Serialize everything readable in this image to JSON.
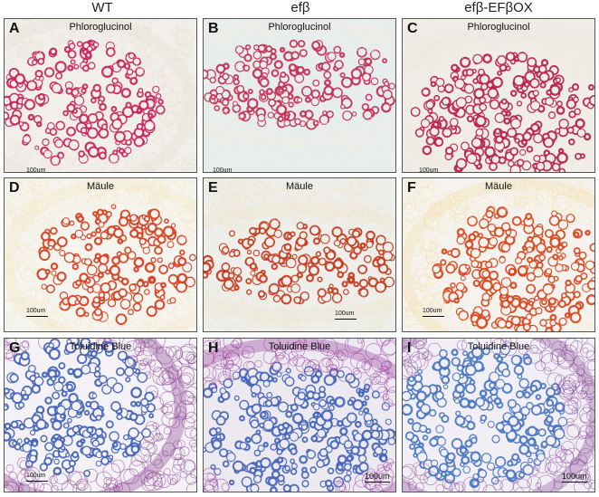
{
  "columns": [
    "WT",
    "efβ",
    "efβ-EFβOX"
  ],
  "rows": [
    {
      "stain": "Phloroglucinol",
      "panels": [
        {
          "letter": "A",
          "scale": "100um",
          "palette": [
            "#e8e3d6",
            "#c82058",
            "#f2eeea"
          ]
        },
        {
          "letter": "B",
          "scale": "100um",
          "palette": [
            "#f1eee8",
            "#c42a52",
            "#e7ecec"
          ]
        },
        {
          "letter": "C",
          "scale": "100um",
          "palette": [
            "#ebe7df",
            "#b81c4a",
            "#f0ede6"
          ]
        }
      ]
    },
    {
      "stain": "Mäule",
      "panels": [
        {
          "letter": "D",
          "scale": "100um",
          "palette": [
            "#f3e8c4",
            "#d63b1c",
            "#f6f4ee"
          ]
        },
        {
          "letter": "E",
          "scale": "100um",
          "palette": [
            "#efe6cd",
            "#c5361a",
            "#eeeeea"
          ]
        },
        {
          "letter": "F",
          "scale": "100um",
          "palette": [
            "#f4e2b4",
            "#d8421a",
            "#f6f3ee"
          ]
        }
      ]
    },
    {
      "stain": "Toluidine Blue",
      "panels": [
        {
          "letter": "G",
          "scale": "100um",
          "palette": [
            "#8a3f8f",
            "#3e5fb6",
            "#f4f2f6"
          ]
        },
        {
          "letter": "H",
          "scale": "100um",
          "palette": [
            "#9b3c9c",
            "#4062b8",
            "#ece9f1"
          ]
        },
        {
          "letter": "I",
          "scale": "100um",
          "palette": [
            "#8b4e9b",
            "#4573c0",
            "#f1eef5"
          ]
        }
      ]
    }
  ]
}
